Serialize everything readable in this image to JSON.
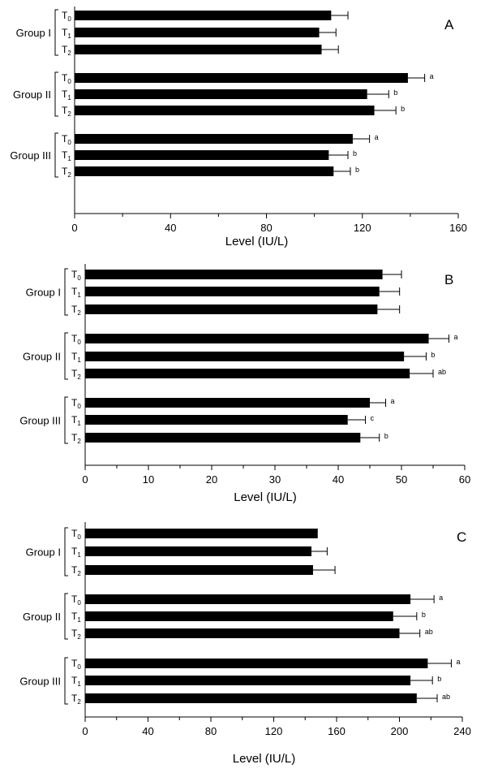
{
  "chart_data": [
    {
      "type": "bar",
      "orientation": "horizontal",
      "panel_label": "A",
      "xlabel": "Level (IU/L)",
      "xlim": [
        0,
        160
      ],
      "xticks": [
        0,
        40,
        80,
        120,
        160
      ],
      "groups": [
        {
          "name": "Group I",
          "bars": [
            {
              "label": "T0",
              "value": 107,
              "error": 7,
              "sig": ""
            },
            {
              "label": "T1",
              "value": 102,
              "error": 7,
              "sig": ""
            },
            {
              "label": "T2",
              "value": 103,
              "error": 7,
              "sig": ""
            }
          ]
        },
        {
          "name": "Group II",
          "bars": [
            {
              "label": "T0",
              "value": 139,
              "error": 7,
              "sig": "a"
            },
            {
              "label": "T1",
              "value": 122,
              "error": 9,
              "sig": "b"
            },
            {
              "label": "T2",
              "value": 125,
              "error": 9,
              "sig": "b"
            }
          ]
        },
        {
          "name": "Group III",
          "bars": [
            {
              "label": "T0",
              "value": 116,
              "error": 7,
              "sig": "a"
            },
            {
              "label": "T1",
              "value": 106,
              "error": 8,
              "sig": "b"
            },
            {
              "label": "T2",
              "value": 108,
              "error": 7,
              "sig": "b"
            }
          ]
        }
      ]
    },
    {
      "type": "bar",
      "orientation": "horizontal",
      "panel_label": "B",
      "xlabel": "Level (IU/L)",
      "xlim": [
        0,
        60
      ],
      "xticks": [
        0,
        10,
        20,
        30,
        40,
        50,
        60
      ],
      "groups": [
        {
          "name": "Group I",
          "bars": [
            {
              "label": "T0",
              "value": 47,
              "error": 3,
              "sig": ""
            },
            {
              "label": "T1",
              "value": 46.5,
              "error": 3.2,
              "sig": ""
            },
            {
              "label": "T2",
              "value": 46.2,
              "error": 3.5,
              "sig": ""
            }
          ]
        },
        {
          "name": "Group II",
          "bars": [
            {
              "label": "T0",
              "value": 54.3,
              "error": 3.2,
              "sig": "a"
            },
            {
              "label": "T1",
              "value": 50.4,
              "error": 3.5,
              "sig": "b"
            },
            {
              "label": "T2",
              "value": 51.3,
              "error": 3.7,
              "sig": "ab"
            }
          ]
        },
        {
          "name": "Group III",
          "bars": [
            {
              "label": "T0",
              "value": 45,
              "error": 2.5,
              "sig": "a"
            },
            {
              "label": "T1",
              "value": 41.5,
              "error": 2.8,
              "sig": "c"
            },
            {
              "label": "T2",
              "value": 43.5,
              "error": 3,
              "sig": "b"
            }
          ]
        }
      ]
    },
    {
      "type": "bar",
      "orientation": "horizontal",
      "panel_label": "C",
      "xlabel": "Level (IU/L)",
      "xlim": [
        0,
        240
      ],
      "xticks": [
        0,
        40,
        80,
        120,
        160,
        200,
        240
      ],
      "groups": [
        {
          "name": "Group I",
          "bars": [
            {
              "label": "T0",
              "value": 148,
              "error": 0,
              "sig": ""
            },
            {
              "label": "T1",
              "value": 144,
              "error": 10,
              "sig": ""
            },
            {
              "label": "T2",
              "value": 145,
              "error": 14,
              "sig": ""
            }
          ]
        },
        {
          "name": "Group II",
          "bars": [
            {
              "label": "T0",
              "value": 207,
              "error": 15,
              "sig": "a"
            },
            {
              "label": "T1",
              "value": 196,
              "error": 15,
              "sig": "b"
            },
            {
              "label": "T2",
              "value": 200,
              "error": 13,
              "sig": "ab"
            }
          ]
        },
        {
          "name": "Group III",
          "bars": [
            {
              "label": "T0",
              "value": 218,
              "error": 15,
              "sig": "a"
            },
            {
              "label": "T1",
              "value": 207,
              "error": 14,
              "sig": "b"
            },
            {
              "label": "T2",
              "value": 211,
              "error": 13,
              "sig": "ab"
            }
          ]
        }
      ]
    }
  ]
}
